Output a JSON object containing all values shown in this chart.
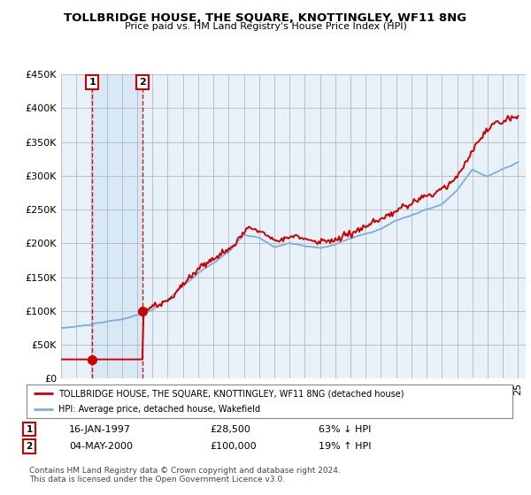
{
  "title": "TOLLBRIDGE HOUSE, THE SQUARE, KNOTTINGLEY, WF11 8NG",
  "subtitle": "Price paid vs. HM Land Registry's House Price Index (HPI)",
  "legend_line1": "TOLLBRIDGE HOUSE, THE SQUARE, KNOTTINGLEY, WF11 8NG (detached house)",
  "legend_line2": "HPI: Average price, detached house, Wakefield",
  "footer1": "Contains HM Land Registry data © Crown copyright and database right 2024.",
  "footer2": "This data is licensed under the Open Government Licence v3.0.",
  "sale1_date": 1997.04,
  "sale1_price": 28500,
  "sale1_label": "16-JAN-1997",
  "sale1_price_str": "£28,500",
  "sale1_pct": "63% ↓ HPI",
  "sale2_date": 2000.34,
  "sale2_price": 100000,
  "sale2_label": "04-MAY-2000",
  "sale2_price_str": "£100,000",
  "sale2_pct": "19% ↑ HPI",
  "ylim": [
    0,
    450000
  ],
  "xlim_start": 1995.0,
  "xlim_end": 2025.5,
  "red_color": "#cc0000",
  "blue_color": "#7aaedb",
  "shade_color": "#d8e8f5",
  "background_color": "#e8f0f8",
  "grid_color": "#b0b8c8"
}
